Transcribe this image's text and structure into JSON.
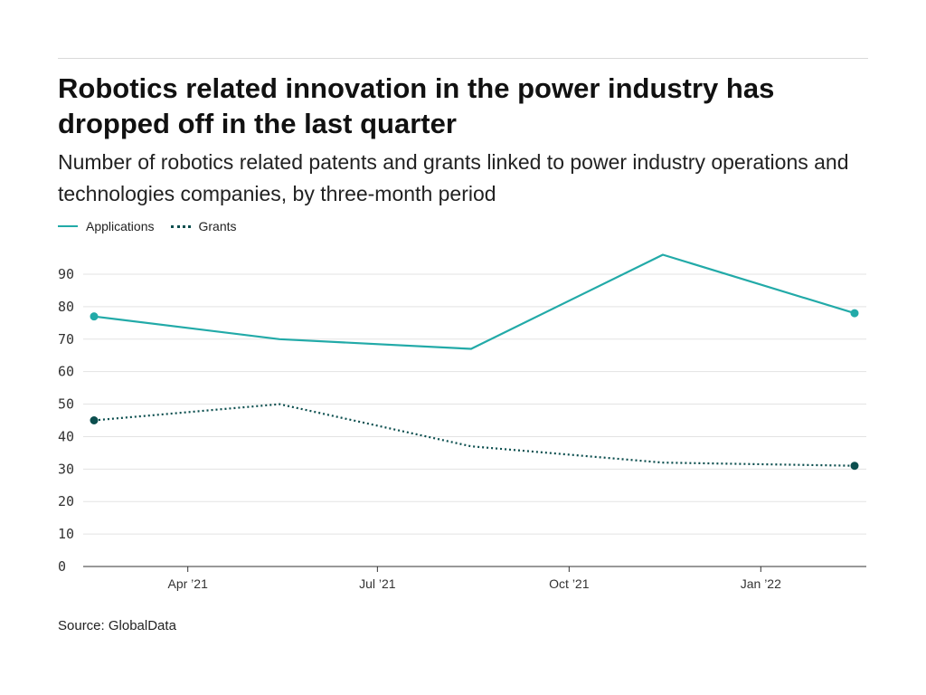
{
  "title": "Robotics related innovation in the power industry has dropped off in the last quarter",
  "subtitle": "Number of robotics related patents and grants linked to power industry operations and technologies companies, by three-month period",
  "source": "Source: GlobalData",
  "colors": {
    "applications": "#22aaa8",
    "grants": "#0b4e4e",
    "grid": "#e3e3e3",
    "axis": "#333333"
  },
  "chart_data": {
    "type": "line",
    "x": [
      "2021-02-15",
      "2021-05-15",
      "2021-08-15",
      "2021-11-15",
      "2022-02-15"
    ],
    "series": [
      {
        "name": "Applications",
        "values": [
          77,
          70,
          67,
          96,
          78
        ],
        "style": "solid"
      },
      {
        "name": "Grants",
        "values": [
          45,
          50,
          37,
          32,
          31
        ],
        "style": "dotted"
      }
    ],
    "x_ticks": [
      {
        "date": "2021-04-01",
        "label": "Apr ’21"
      },
      {
        "date": "2021-07-01",
        "label": "Jul ’21"
      },
      {
        "date": "2021-10-01",
        "label": "Oct ’21"
      },
      {
        "date": "2022-01-01",
        "label": "Jan ’22"
      }
    ],
    "xlim": [
      "2021-02-15",
      "2022-02-15"
    ],
    "y_ticks": [
      0,
      10,
      20,
      30,
      40,
      50,
      60,
      70,
      80,
      90
    ],
    "ylim": [
      0,
      90
    ],
    "grid": true,
    "legend": "top-left",
    "xlabel": "",
    "ylabel": ""
  }
}
